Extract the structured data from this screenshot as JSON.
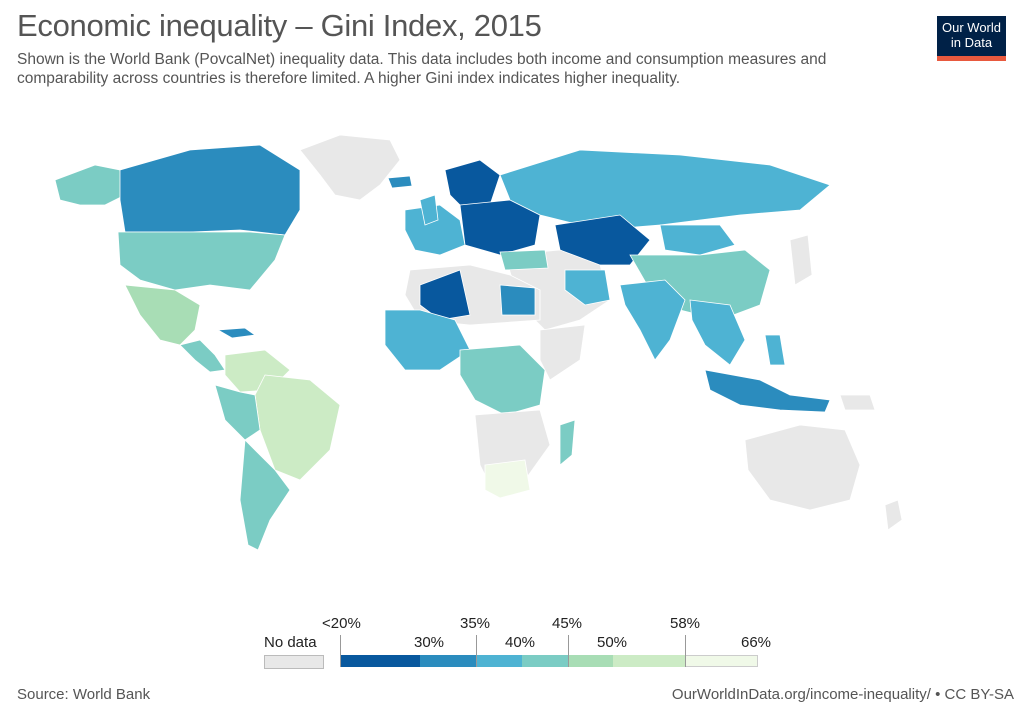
{
  "header": {
    "title": "Economic inequality – Gini Index, 2015",
    "subtitle": "Shown is the World Bank (PovcalNet) inequality data. This data includes both income and consumption measures and comparability across countries is therefore limited. A higher Gini index indicates higher inequality."
  },
  "logo": {
    "line1": "Our World",
    "line2": "in Data"
  },
  "legend": {
    "no_data_label": "No data",
    "no_data_color": "#e8e8e8",
    "upper_labels": [
      "<20%",
      "35%",
      "45%",
      "58%"
    ],
    "lower_labels": [
      "30%",
      "40%",
      "50%",
      "66%"
    ],
    "colors": [
      "#08589e",
      "#2b8cbe",
      "#4eb3d3",
      "#7bccc4",
      "#a8ddb5",
      "#ccebc5",
      "#f0f9e8"
    ]
  },
  "map": {
    "colors": {
      "land_nodata": "#e8e8e8",
      "border": "#ffffff"
    }
  },
  "footer": {
    "source": "Source: World Bank",
    "url": "OurWorldInData.org/income-inequality/ • CC BY-SA"
  }
}
